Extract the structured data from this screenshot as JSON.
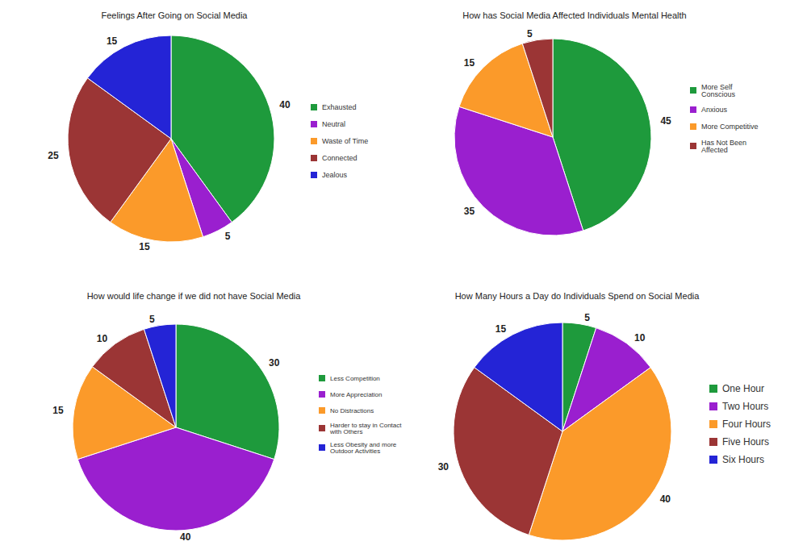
{
  "chart_data": [
    {
      "type": "pie",
      "title": "Feelings After Going on Social Media",
      "categories": [
        "Exhausted",
        "Neutral",
        "Waste of Time",
        "Connected",
        "Jealous"
      ],
      "values": [
        40,
        5,
        15,
        25,
        15
      ],
      "colors": [
        "#1e9a3c",
        "#9a1fcf",
        "#fb9a2a",
        "#9b3535",
        "#2424d6"
      ],
      "data_labels": true,
      "legend": "right"
    },
    {
      "type": "pie",
      "title": "How has Social Media Affected Individuals Mental Health",
      "categories": [
        "More Self Conscious",
        "Anxious",
        "More Competitive",
        "Has Not Been Affected"
      ],
      "values": [
        45,
        35,
        15,
        5
      ],
      "colors": [
        "#1e9a3c",
        "#9a1fcf",
        "#fb9a2a",
        "#9b3535"
      ],
      "data_labels": true,
      "legend": "right"
    },
    {
      "type": "pie",
      "title": "How would life change if we did not have Social Media",
      "categories": [
        "Less Competition",
        "More Appreciation",
        "No Distractions",
        "Harder to stay in Contact with Others",
        "Less Obesity and more Outdoor Activities"
      ],
      "values": [
        30,
        40,
        15,
        10,
        5
      ],
      "colors": [
        "#1e9a3c",
        "#9a1fcf",
        "#fb9a2a",
        "#9b3535",
        "#2424d6"
      ],
      "data_labels": true,
      "legend": "right"
    },
    {
      "type": "pie",
      "title": "How Many Hours a Day do Individuals Spend on Social Media",
      "categories": [
        "One Hour",
        "Two Hours",
        "Four Hours",
        "Five Hours",
        "Six Hours"
      ],
      "values": [
        5,
        10,
        40,
        30,
        15
      ],
      "colors": [
        "#1e9a3c",
        "#9a1fcf",
        "#fb9a2a",
        "#9b3535",
        "#2424d6"
      ],
      "data_labels": true,
      "legend": "right"
    }
  ]
}
